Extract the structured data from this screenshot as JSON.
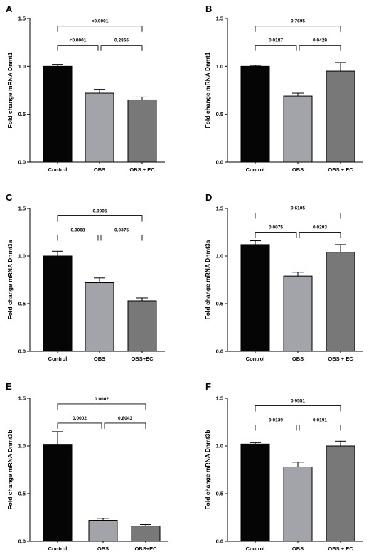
{
  "colors": {
    "control": "#050505",
    "obs": "#a3a3aa",
    "obs_ec": "#787878",
    "axis": "#000000"
  },
  "chart_data": [
    {
      "panel": "A",
      "type": "bar",
      "ylabel": "Fold change mRNA Dnmt1",
      "ylim": [
        0,
        1.5
      ],
      "yticks": [
        "0.0",
        "0.5",
        "1.0",
        "1.5"
      ],
      "categories": [
        "Control",
        "OBS",
        "OBS + EC"
      ],
      "values": [
        1.0,
        0.72,
        0.65
      ],
      "errors": [
        0.02,
        0.04,
        0.03
      ],
      "brackets": [
        {
          "a": 0,
          "b": 1,
          "label": "<0.0001"
        },
        {
          "a": 1,
          "b": 2,
          "label": "0.2866"
        },
        {
          "a": 0,
          "b": 2,
          "label": "<0.0001"
        }
      ]
    },
    {
      "panel": "B",
      "type": "bar",
      "ylabel": "Fold change mRNA Dnmt1",
      "ylim": [
        0,
        1.5
      ],
      "yticks": [
        "0.0",
        "0.5",
        "1.0",
        "1.5"
      ],
      "categories": [
        "Control",
        "OBS",
        "OBS + EC"
      ],
      "values": [
        1.0,
        0.69,
        0.95
      ],
      "errors": [
        0.01,
        0.03,
        0.09
      ],
      "brackets": [
        {
          "a": 0,
          "b": 1,
          "label": "0.0187"
        },
        {
          "a": 1,
          "b": 2,
          "label": "0.0429"
        },
        {
          "a": 0,
          "b": 2,
          "label": "0.7695"
        }
      ]
    },
    {
      "panel": "C",
      "type": "bar",
      "ylabel": "Fold change mRNA Dnmt3a",
      "ylim": [
        0,
        1.5
      ],
      "yticks": [
        "0.0",
        "0.5",
        "1.0",
        "1.5"
      ],
      "categories": [
        "Control",
        "OBS",
        "OBS+EC"
      ],
      "values": [
        1.0,
        0.72,
        0.53
      ],
      "errors": [
        0.05,
        0.05,
        0.03
      ],
      "brackets": [
        {
          "a": 0,
          "b": 1,
          "label": "0.0068"
        },
        {
          "a": 1,
          "b": 2,
          "label": "0.0375"
        },
        {
          "a": 0,
          "b": 2,
          "label": "0.0005"
        }
      ]
    },
    {
      "panel": "D",
      "type": "bar",
      "ylabel": "Fold change mRNA Dnmt3a",
      "ylim": [
        0,
        1.5
      ],
      "yticks": [
        "0.0",
        "0.5",
        "1.0",
        "1.5"
      ],
      "categories": [
        "Control",
        "OBS",
        "OBS + EC"
      ],
      "values": [
        1.12,
        0.79,
        1.04
      ],
      "errors": [
        0.04,
        0.04,
        0.08
      ],
      "brackets": [
        {
          "a": 0,
          "b": 1,
          "label": "0.0075"
        },
        {
          "a": 1,
          "b": 2,
          "label": "0.0203"
        },
        {
          "a": 0,
          "b": 2,
          "label": "0.6105"
        }
      ]
    },
    {
      "panel": "E",
      "type": "bar",
      "ylabel": "Fold change mRNA Dnmt3b",
      "ylim": [
        0,
        1.5
      ],
      "yticks": [
        "0.0",
        "0.5",
        "1.0",
        "1.5"
      ],
      "categories": [
        "Control",
        "OBS",
        "OBS+EC"
      ],
      "values": [
        1.01,
        0.22,
        0.16
      ],
      "errors": [
        0.14,
        0.02,
        0.015
      ],
      "brackets": [
        {
          "a": 0,
          "b": 1,
          "label": "0.0002"
        },
        {
          "a": 1,
          "b": 2,
          "label": "0.8043"
        },
        {
          "a": 0,
          "b": 2,
          "label": "0.0002"
        }
      ]
    },
    {
      "panel": "F",
      "type": "bar",
      "ylabel": "Fold change mRNA Dnmt3b",
      "ylim": [
        0,
        1.5
      ],
      "yticks": [
        "0.0",
        "0.5",
        "1.0",
        "1.5"
      ],
      "categories": [
        "Control",
        "OBS",
        "OBS + EC"
      ],
      "values": [
        1.02,
        0.78,
        1.0
      ],
      "errors": [
        0.015,
        0.05,
        0.05
      ],
      "brackets": [
        {
          "a": 0,
          "b": 1,
          "label": "0.0139"
        },
        {
          "a": 1,
          "b": 2,
          "label": "0.0191"
        },
        {
          "a": 0,
          "b": 2,
          "label": "0.9551"
        }
      ]
    }
  ]
}
